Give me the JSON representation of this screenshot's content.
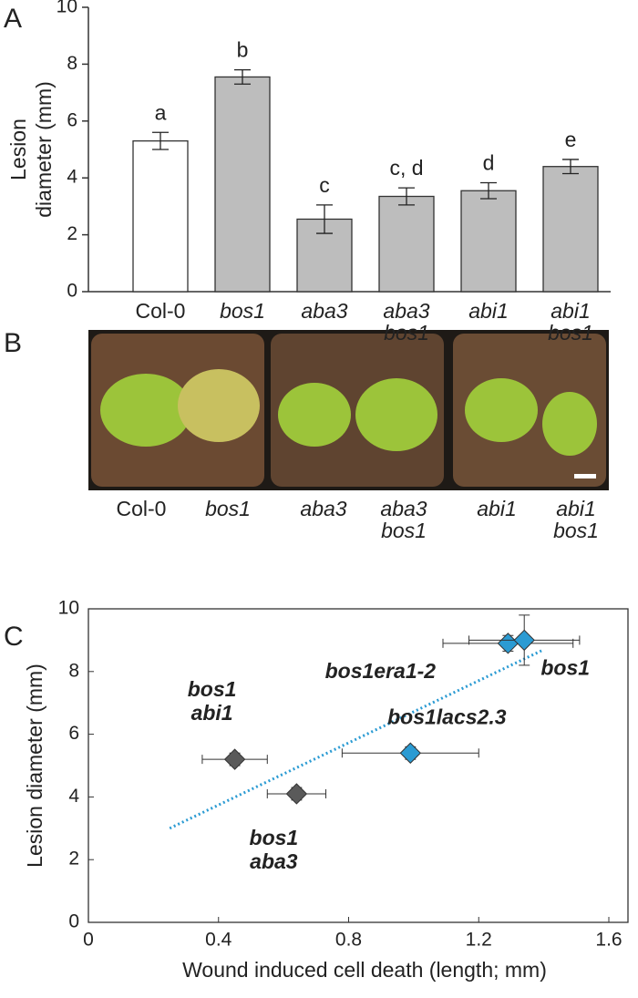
{
  "chart_data": [
    {
      "type": "bar",
      "panel": "A",
      "ylabel_lines": [
        "Lesion",
        "diameter (mm)"
      ],
      "categories": [
        "Col-0",
        "bos1",
        "aba3",
        "aba3 bos1",
        "abi1",
        "abi1 bos1"
      ],
      "category_italic": [
        false,
        true,
        true,
        true,
        true,
        true
      ],
      "values": [
        5.3,
        7.55,
        2.55,
        3.35,
        3.55,
        4.4
      ],
      "errors": [
        0.3,
        0.25,
        0.5,
        0.3,
        0.28,
        0.25
      ],
      "letters": [
        "a",
        "b",
        "c",
        "c, d",
        "d",
        "e"
      ],
      "colors": [
        "#ffffff",
        "#bdbdbd",
        "#bdbdbd",
        "#bdbdbd",
        "#bdbdbd",
        "#bdbdbd"
      ],
      "ylim": [
        0,
        10
      ],
      "yticks": [
        0,
        2,
        4,
        6,
        8,
        10
      ]
    },
    {
      "type": "photo",
      "panel": "B",
      "labels": [
        "Col-0",
        "bos1",
        "aba3",
        "aba3 bos1",
        "abi1",
        "abi1 bos1"
      ],
      "label_italic": [
        false,
        true,
        true,
        true,
        true,
        true
      ]
    },
    {
      "type": "scatter",
      "panel": "C",
      "xlabel": "Wound induced cell death (length; mm)",
      "ylabel": "Lesion diameter (mm)",
      "series": [
        {
          "name": "bos1 abi1",
          "color": "#5a5a5a",
          "label_color": "#666666",
          "x": [
            0.45
          ],
          "values": [
            5.2
          ],
          "xerr": [
            0.1
          ],
          "yerr": [
            0.2
          ]
        },
        {
          "name": "bos1 aba3",
          "color": "#5a5a5a",
          "label_color": "#666666",
          "x": [
            0.64
          ],
          "values": [
            4.1
          ],
          "xerr": [
            0.09
          ],
          "yerr": [
            0.2
          ]
        },
        {
          "name": "bos1lacs2.3",
          "color": "#2b9bd3",
          "label_color": "#111111",
          "x": [
            0.99
          ],
          "values": [
            5.4
          ],
          "xerr": [
            0.21
          ],
          "yerr": [
            0.2
          ]
        },
        {
          "name": "bos1era1-2",
          "color": "#2b9bd3",
          "label_color": "#111111",
          "x": [
            1.29
          ],
          "values": [
            8.9
          ],
          "xerr": [
            0.2
          ],
          "yerr": [
            0.25
          ]
        },
        {
          "name": "bos1",
          "color": "#2b9bd3",
          "label_color": "#111111",
          "x": [
            1.34
          ],
          "values": [
            9.0
          ],
          "xerr": [
            0.17
          ],
          "yerr": [
            0.8
          ]
        }
      ],
      "trendline": {
        "x": [
          0.25,
          1.4
        ],
        "y": [
          3.0,
          8.7
        ],
        "color": "#2b9bd3"
      },
      "xlim": [
        0,
        1.6
      ],
      "xticks": [
        0,
        0.4,
        0.8,
        1.2,
        1.6
      ],
      "ylim": [
        0,
        10
      ],
      "yticks": [
        0,
        2,
        4,
        6,
        8,
        10
      ]
    }
  ]
}
